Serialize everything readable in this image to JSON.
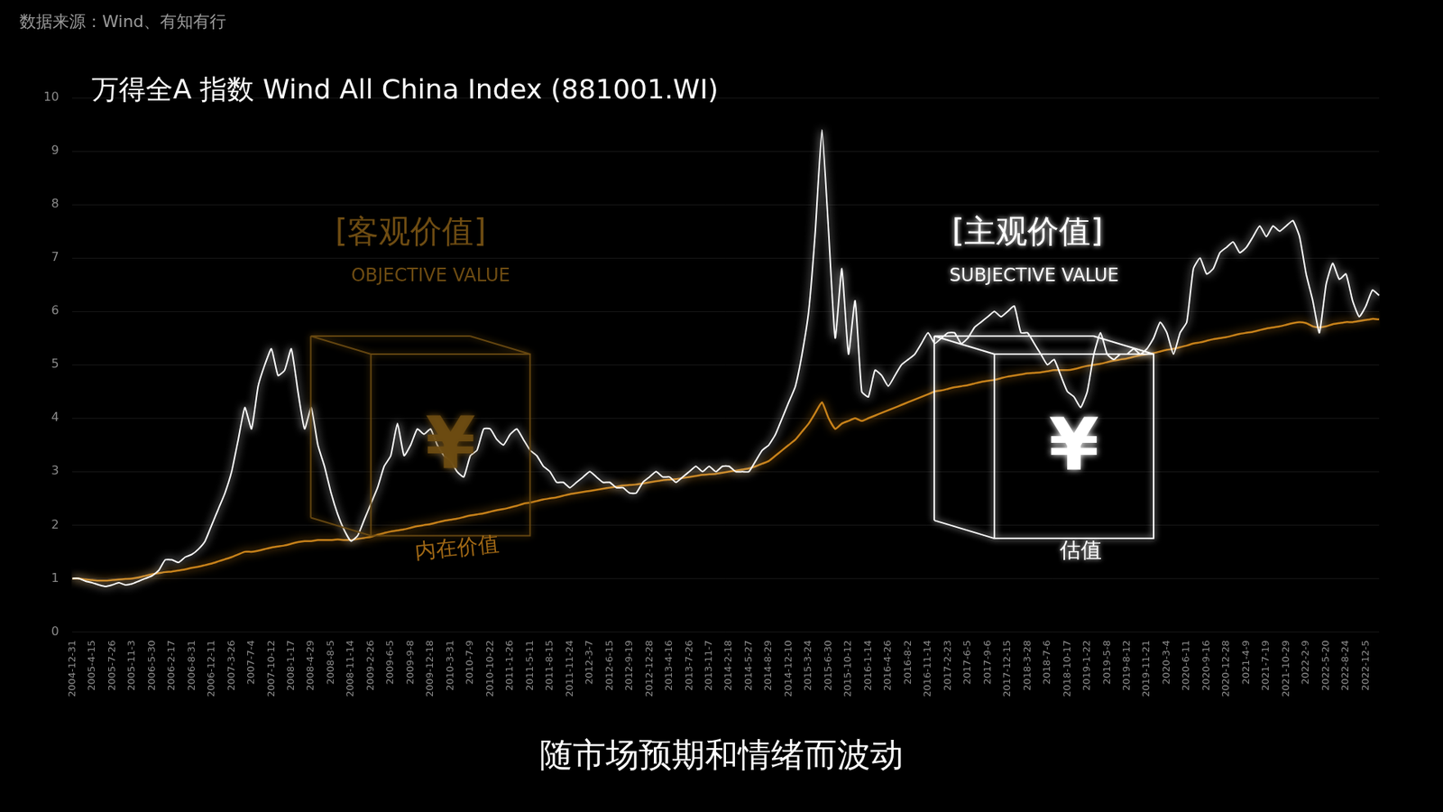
{
  "chart_data": {
    "type": "line",
    "title": "万得全A 指数 Wind All China Index (881001.WI)",
    "source": "数据来源：Wind、有知有行",
    "caption": "随市场预期和情绪而波动",
    "categories": [
      "2004-12-31",
      null,
      null,
      "2005-4-15",
      null,
      null,
      "2005-7-26",
      null,
      null,
      "2005-11-3",
      null,
      null,
      "2006-5-30",
      null,
      null,
      "2006-2-17",
      null,
      null,
      "2006-8-31",
      null,
      null,
      "2006-12-11",
      null,
      null,
      "2007-3-26",
      null,
      null,
      "2007-7-4",
      null,
      null,
      "2007-10-12",
      null,
      null,
      "2008-1-17",
      null,
      null,
      "2008-4-29",
      null,
      null,
      "2008-8-5",
      null,
      null,
      "2008-11-14",
      null,
      null,
      "2009-2-26",
      null,
      null,
      "2009-6-5",
      null,
      null,
      "2009-9-8",
      null,
      null,
      "2009-12-18",
      null,
      null,
      "2010-3-31",
      null,
      null,
      "2010-7-9",
      null,
      null,
      "2010-10-22",
      null,
      null,
      "2011-1-26",
      null,
      null,
      "2011-5-11",
      null,
      null,
      "2011-8-15",
      null,
      null,
      "2011-11-24",
      null,
      null,
      "2012-3-7",
      null,
      null,
      "2012-6-15",
      null,
      null,
      "2012-9-19",
      null,
      null,
      "2012-12-28",
      null,
      null,
      "2013-4-16",
      null,
      null,
      "2013-7-26",
      null,
      null,
      "2013-11-7",
      null,
      null,
      "2014-2-18",
      null,
      null,
      "2014-5-27",
      null,
      null,
      "2014-8-29",
      null,
      null,
      "2014-12-10",
      null,
      null,
      "2015-3-24",
      null,
      null,
      "2015-6-30",
      null,
      null,
      "2015-10-12",
      null,
      null,
      "2016-1-14",
      null,
      null,
      "2016-4-26",
      null,
      null,
      "2016-8-2",
      null,
      null,
      "2016-11-14",
      null,
      null,
      "2017-2-23",
      null,
      null,
      "2017-6-5",
      null,
      null,
      "2017-9-6",
      null,
      null,
      "2017-12-15",
      null,
      null,
      "2018-3-28",
      null,
      null,
      "2018-7-6",
      null,
      null,
      "2018-10-17",
      null,
      null,
      "2019-1-22",
      null,
      null,
      "2019-5-8",
      null,
      null,
      "2019-8-12",
      null,
      null,
      "2019-11-21",
      null,
      null,
      "2020-3-4",
      null,
      null,
      "2020-6-11",
      null,
      null,
      "2020-9-16",
      null,
      null,
      "2020-12-28",
      null,
      null,
      "2021-4-9",
      null,
      null,
      "2021-7-19",
      null,
      null,
      "2021-10-29",
      null,
      null,
      "2022-2-9",
      null,
      null,
      "2022-5-20",
      null,
      null,
      "2022-8-24",
      null,
      null,
      "2022-12-5",
      null,
      null
    ],
    "series": [
      {
        "color": "#ffffff",
        "values": [
          1.0,
          1.0,
          0.95,
          0.92,
          0.88,
          0.85,
          0.88,
          0.92,
          0.88,
          0.9,
          0.95,
          1.0,
          1.05,
          1.15,
          1.35,
          1.35,
          1.3,
          1.4,
          1.45,
          1.55,
          1.7,
          2.0,
          2.3,
          2.6,
          3.0,
          3.6,
          4.2,
          3.8,
          4.6,
          5.0,
          5.3,
          4.8,
          4.9,
          5.3,
          4.5,
          3.8,
          4.2,
          3.5,
          3.1,
          2.6,
          2.2,
          1.9,
          1.7,
          1.8,
          2.1,
          2.4,
          2.7,
          3.1,
          3.3,
          3.9,
          3.3,
          3.5,
          3.8,
          3.7,
          3.8,
          3.5,
          3.3,
          3.2,
          3.0,
          2.9,
          3.3,
          3.4,
          3.8,
          3.8,
          3.6,
          3.5,
          3.7,
          3.8,
          3.6,
          3.4,
          3.3,
          3.1,
          3.0,
          2.8,
          2.8,
          2.7,
          2.8,
          2.9,
          3.0,
          2.9,
          2.8,
          2.8,
          2.7,
          2.7,
          2.6,
          2.6,
          2.8,
          2.9,
          3.0,
          2.9,
          2.9,
          2.8,
          2.9,
          3.0,
          3.1,
          3.0,
          3.1,
          3.0,
          3.1,
          3.1,
          3.0,
          3.0,
          3.0,
          3.2,
          3.4,
          3.5,
          3.7,
          4.0,
          4.3,
          4.6,
          5.2,
          6.0,
          7.5,
          9.4,
          7.5,
          5.5,
          6.8,
          5.2,
          6.2,
          4.5,
          4.4,
          4.9,
          4.8,
          4.6,
          4.8,
          5.0,
          5.1,
          5.2,
          5.4,
          5.6,
          5.4,
          5.5,
          5.6,
          5.6,
          5.4,
          5.5,
          5.7,
          5.8,
          5.9,
          6.0,
          5.9,
          6.0,
          6.1,
          5.6,
          5.6,
          5.4,
          5.2,
          5.0,
          5.1,
          4.8,
          4.5,
          4.4,
          4.2,
          4.5,
          5.2,
          5.6,
          5.2,
          5.1,
          5.2,
          5.2,
          5.3,
          5.2,
          5.3,
          5.5,
          5.8,
          5.6,
          5.2,
          5.6,
          5.8,
          6.8,
          7.0,
          6.7,
          6.8,
          7.1,
          7.2,
          7.3,
          7.1,
          7.2,
          7.4,
          7.6,
          7.4,
          7.6,
          7.5,
          7.6,
          7.7,
          7.4,
          6.7,
          6.2,
          5.6,
          6.5,
          6.9,
          6.6,
          6.7,
          6.2,
          5.9,
          6.1,
          6.4,
          6.3
        ]
      },
      {
        "name": "内在价值",
        "color": "#c8821a",
        "values": [
          1.0,
          1.0,
          0.98,
          0.97,
          0.96,
          0.96,
          0.97,
          0.98,
          0.99,
          1.0,
          1.02,
          1.05,
          1.08,
          1.1,
          1.12,
          1.13,
          1.15,
          1.17,
          1.2,
          1.22,
          1.25,
          1.28,
          1.32,
          1.36,
          1.4,
          1.45,
          1.5,
          1.5,
          1.52,
          1.55,
          1.58,
          1.6,
          1.62,
          1.65,
          1.68,
          1.7,
          1.7,
          1.72,
          1.72,
          1.72,
          1.73,
          1.72,
          1.72,
          1.74,
          1.76,
          1.78,
          1.82,
          1.85,
          1.88,
          1.9,
          1.92,
          1.95,
          1.98,
          2.0,
          2.02,
          2.05,
          2.08,
          2.1,
          2.12,
          2.15,
          2.18,
          2.2,
          2.22,
          2.25,
          2.28,
          2.3,
          2.33,
          2.36,
          2.4,
          2.42,
          2.45,
          2.48,
          2.5,
          2.52,
          2.55,
          2.58,
          2.6,
          2.62,
          2.64,
          2.66,
          2.68,
          2.7,
          2.72,
          2.74,
          2.75,
          2.76,
          2.78,
          2.8,
          2.82,
          2.84,
          2.85,
          2.86,
          2.88,
          2.9,
          2.92,
          2.94,
          2.95,
          2.96,
          2.98,
          3.0,
          3.02,
          3.04,
          3.06,
          3.1,
          3.15,
          3.2,
          3.3,
          3.4,
          3.5,
          3.6,
          3.75,
          3.9,
          4.1,
          4.3,
          4.0,
          3.8,
          3.9,
          3.95,
          4.0,
          3.95,
          4.0,
          4.05,
          4.1,
          4.15,
          4.2,
          4.25,
          4.3,
          4.35,
          4.4,
          4.45,
          4.5,
          4.52,
          4.55,
          4.58,
          4.6,
          4.62,
          4.65,
          4.68,
          4.7,
          4.72,
          4.75,
          4.78,
          4.8,
          4.82,
          4.84,
          4.85,
          4.86,
          4.88,
          4.9,
          4.9,
          4.9,
          4.92,
          4.95,
          4.98,
          5.0,
          5.02,
          5.05,
          5.08,
          5.1,
          5.12,
          5.15,
          5.18,
          5.2,
          5.22,
          5.25,
          5.28,
          5.3,
          5.33,
          5.36,
          5.4,
          5.42,
          5.45,
          5.48,
          5.5,
          5.52,
          5.55,
          5.58,
          5.6,
          5.62,
          5.65,
          5.68,
          5.7,
          5.72,
          5.75,
          5.78,
          5.8,
          5.78,
          5.72,
          5.7,
          5.72,
          5.76,
          5.78,
          5.8,
          5.8,
          5.82,
          5.84,
          5.86,
          5.85
        ]
      }
    ],
    "ylim": [
      0,
      10
    ],
    "yticks": [
      0,
      1,
      2,
      3,
      4,
      5,
      6,
      7,
      8,
      9,
      10
    ],
    "grid": true,
    "legend": false,
    "annotations": {
      "objective": {
        "title": "[客观价值]",
        "subtitle": "OBJECTIVE VALUE",
        "symbol": "¥",
        "color": "#6e4c12"
      },
      "subjective": {
        "title": "[主观价值]",
        "subtitle": "SUBJECTIVE VALUE",
        "symbol": "¥",
        "label": "估值",
        "color": "#ffffff"
      }
    }
  }
}
